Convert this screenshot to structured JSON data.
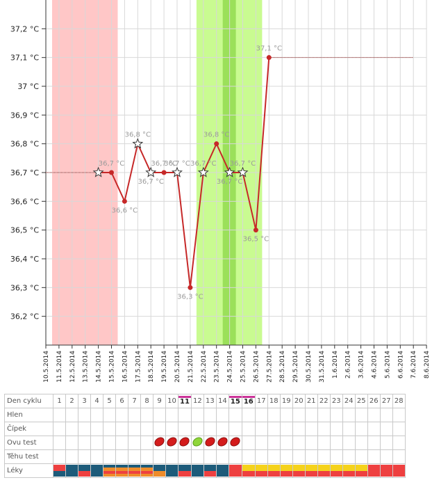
{
  "chart_data": {
    "type": "line",
    "title": "",
    "xlabel": "",
    "ylabel": "",
    "ylim": [
      36.1,
      37.3
    ],
    "y_ticks": [
      {
        "v": 36.2,
        "label": "36,2 °C"
      },
      {
        "v": 36.3,
        "label": "36,3 °C"
      },
      {
        "v": 36.4,
        "label": "36,4 °C"
      },
      {
        "v": 36.5,
        "label": "36,5 °C"
      },
      {
        "v": 36.6,
        "label": "36,6 °C"
      },
      {
        "v": 36.7,
        "label": "36,7 °C"
      },
      {
        "v": 36.8,
        "label": "36,8 °C"
      },
      {
        "v": 36.9,
        "label": "36,9 °C"
      },
      {
        "v": 37.0,
        "label": "37 °C"
      },
      {
        "v": 37.1,
        "label": "37,1 °C"
      },
      {
        "v": 37.2,
        "label": "37,2 °C"
      }
    ],
    "dates": [
      "10.5.2014",
      "11.5.2014",
      "12.5.2014",
      "13.5.2014",
      "14.5.2014",
      "15.5.2014",
      "16.5.2014",
      "17.5.2014",
      "18.5.2014",
      "19.5.2014",
      "20.5.2014",
      "21.5.2014",
      "22.5.2014",
      "23.5.2014",
      "24.5.2014",
      "25.5.2014",
      "26.5.2014",
      "27.5.2014",
      "28.5.2014",
      "29.5.2014",
      "30.5.2014",
      "31.5.2014",
      "1.6.2014",
      "2.6.2014",
      "3.6.2014",
      "4.6.2014",
      "5.6.2014",
      "6.6.2014",
      "7.6.2014",
      "8.6.2014"
    ],
    "series": [
      {
        "color": "#c62828",
        "points": [
          {
            "date": "14.5.2014",
            "value": 36.7,
            "marker": "star",
            "label": ""
          },
          {
            "date": "15.5.2014",
            "value": 36.7,
            "marker": "dot",
            "label": "36,7 °C"
          },
          {
            "date": "16.5.2014",
            "value": 36.6,
            "marker": "dot",
            "label": "36,6 °C"
          },
          {
            "date": "17.5.2014",
            "value": 36.8,
            "marker": "star",
            "label": "36,8 °C"
          },
          {
            "date": "18.5.2014",
            "value": 36.7,
            "marker": "star",
            "label": "36,7 °C"
          },
          {
            "date": "19.5.2014",
            "value": 36.7,
            "marker": "dot",
            "label": "36,7 °C"
          },
          {
            "date": "20.5.2014",
            "value": 36.7,
            "marker": "star",
            "label": "36,7 °C"
          },
          {
            "date": "21.5.2014",
            "value": 36.3,
            "marker": "dot",
            "label": "36,3 °C"
          },
          {
            "date": "22.5.2014",
            "value": 36.7,
            "marker": "star",
            "label": "36,7 °C"
          },
          {
            "date": "23.5.2014",
            "value": 36.8,
            "marker": "dot",
            "label": "36,8 °C"
          },
          {
            "date": "24.5.2014",
            "value": 36.7,
            "marker": "star",
            "label": "36,7 °C"
          },
          {
            "date": "25.5.2014",
            "value": 36.7,
            "marker": "star",
            "label": "36,7 °C"
          },
          {
            "date": "26.5.2014",
            "value": 36.5,
            "marker": "dot",
            "label": "36,5 °C"
          },
          {
            "date": "27.5.2014",
            "value": 37.1,
            "marker": "dot",
            "label": "37,1 °C"
          }
        ]
      }
    ],
    "dotted_lines": [
      {
        "from": "10.5.2014",
        "to": "14.5.2014",
        "value": 36.7,
        "color": "#8a1a1a"
      },
      {
        "from": "27.5.2014",
        "to": "7.6.2014",
        "value": 37.1,
        "color": "#8a1a1a"
      }
    ],
    "bands": [
      {
        "from": "10.5.2014",
        "to": "15.5.2014",
        "color": "#ffc7c7"
      },
      {
        "from": "21.5.2014",
        "to": "26.5.2014",
        "color": "#c9fb91"
      },
      {
        "from": "23.5.2014",
        "to": "24.5.2014",
        "color": "#9be05a"
      }
    ],
    "grid": true,
    "legend": "none"
  },
  "cycle_table": {
    "row_labels": {
      "den_cyklu": "Den cyklu",
      "hlen": "Hlen",
      "cipek": "Čípek",
      "ovu_test": "Ovu test",
      "tehu_test": "Těhu test",
      "leky": "Léky"
    },
    "days": [
      {
        "n": "1",
        "hl": false,
        "ovu": "",
        "med": "rb"
      },
      {
        "n": "2",
        "hl": false,
        "ovu": "",
        "med": "b"
      },
      {
        "n": "3",
        "hl": false,
        "ovu": "",
        "med": "br"
      },
      {
        "n": "4",
        "hl": false,
        "ovu": "",
        "med": "b"
      },
      {
        "n": "5",
        "hl": false,
        "ovu": "",
        "med": "boro"
      },
      {
        "n": "6",
        "hl": false,
        "ovu": "",
        "med": "boro"
      },
      {
        "n": "7",
        "hl": false,
        "ovu": "",
        "med": "boro"
      },
      {
        "n": "8",
        "hl": false,
        "ovu": "",
        "med": "boro"
      },
      {
        "n": "9",
        "hl": false,
        "ovu": "red",
        "med": "bo"
      },
      {
        "n": "10",
        "hl": false,
        "ovu": "red",
        "med": "b"
      },
      {
        "n": "11",
        "hl": true,
        "ovu": "red",
        "med": "br"
      },
      {
        "n": "12",
        "hl": false,
        "ovu": "green",
        "med": "b"
      },
      {
        "n": "13",
        "hl": false,
        "ovu": "red",
        "med": "br"
      },
      {
        "n": "14",
        "hl": false,
        "ovu": "red",
        "med": "b"
      },
      {
        "n": "15",
        "hl": true,
        "ovu": "red",
        "med": "r"
      },
      {
        "n": "16",
        "hl": true,
        "ovu": "",
        "med": "yr"
      },
      {
        "n": "17",
        "hl": false,
        "ovu": "",
        "med": "yr"
      },
      {
        "n": "18",
        "hl": false,
        "ovu": "",
        "med": "yr"
      },
      {
        "n": "19",
        "hl": false,
        "ovu": "",
        "med": "yr"
      },
      {
        "n": "20",
        "hl": false,
        "ovu": "",
        "med": "yr"
      },
      {
        "n": "21",
        "hl": false,
        "ovu": "",
        "med": "yr"
      },
      {
        "n": "22",
        "hl": false,
        "ovu": "",
        "med": "yr"
      },
      {
        "n": "23",
        "hl": false,
        "ovu": "",
        "med": "yr"
      },
      {
        "n": "24",
        "hl": false,
        "ovu": "",
        "med": "yr"
      },
      {
        "n": "25",
        "hl": false,
        "ovu": "",
        "med": "yr"
      },
      {
        "n": "26",
        "hl": false,
        "ovu": "",
        "med": "r"
      },
      {
        "n": "27",
        "hl": false,
        "ovu": "",
        "med": "r"
      },
      {
        "n": "28",
        "hl": false,
        "ovu": "",
        "med": "r"
      }
    ],
    "colors": {
      "ovu_red": "#d41c1c",
      "ovu_green": "#8fd63a",
      "med_blue": "#1d5b7a",
      "med_red": "#ee4040",
      "med_yellow": "#f5d21b",
      "med_orange": "#ef8c2a"
    }
  }
}
